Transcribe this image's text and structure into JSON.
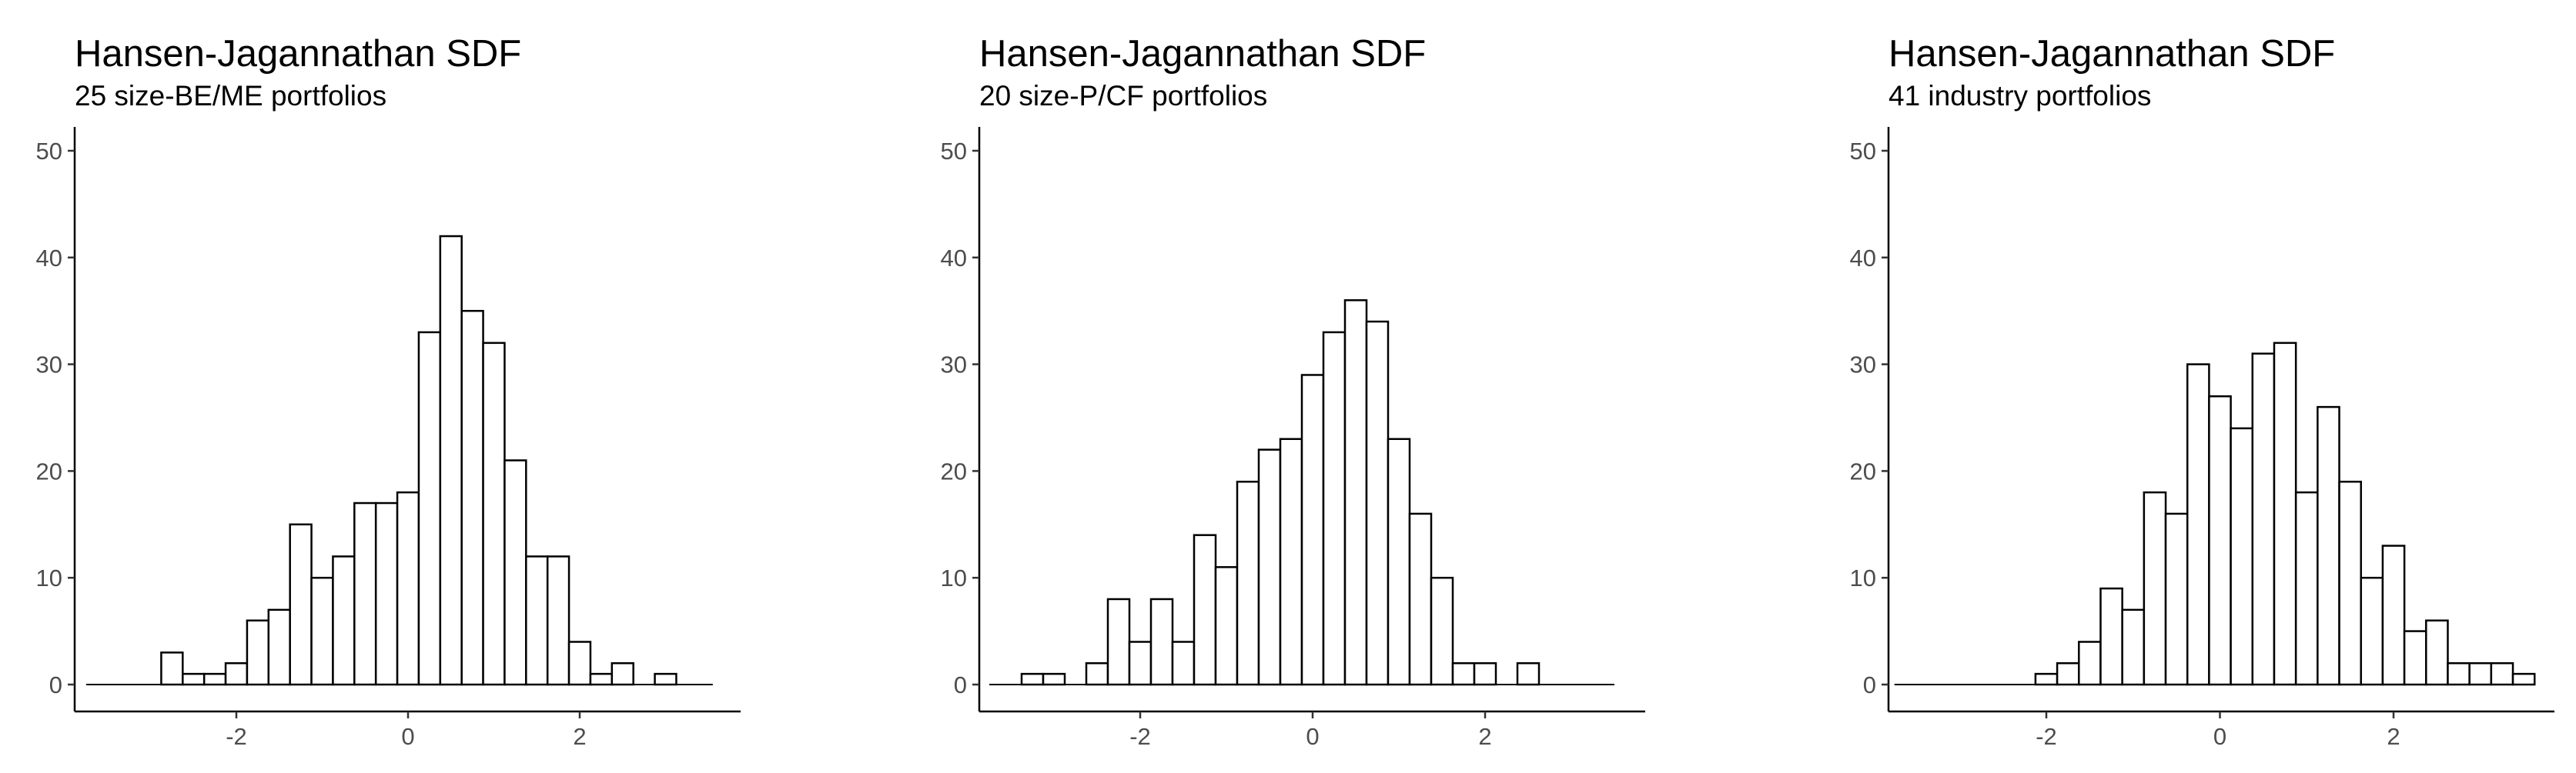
{
  "chart_data": [
    {
      "type": "bar",
      "title": "Hansen-Jagannathan SDF",
      "subtitle": "25 size-BE/ME portfolios",
      "xlabel": "",
      "ylabel": "",
      "bin_width": 0.25,
      "bin_start": -3.125,
      "counts": [
        0,
        3,
        1,
        1,
        2,
        6,
        7,
        15,
        10,
        12,
        17,
        17,
        18,
        33,
        42,
        35,
        32,
        21,
        12,
        12,
        4,
        1,
        2,
        0,
        1,
        0,
        0
      ],
      "xlim": [
        -3.25,
        3.6
      ],
      "ylim": [
        0,
        50
      ],
      "xticks": [
        -2,
        0,
        2
      ],
      "yticks": [
        0,
        10,
        20,
        30,
        40,
        50
      ],
      "grid": false
    },
    {
      "type": "bar",
      "title": "Hansen-Jagannathan SDF",
      "subtitle": "20 size-P/CF portfolios",
      "xlabel": "",
      "ylabel": "",
      "bin_width": 0.25,
      "bin_start": -3.375,
      "counts": [
        1,
        1,
        0,
        2,
        8,
        4,
        8,
        4,
        14,
        11,
        19,
        22,
        23,
        29,
        33,
        36,
        34,
        23,
        16,
        10,
        2,
        2,
        0,
        2,
        0,
        0,
        0
      ],
      "xlim": [
        -3.5,
        3.6
      ],
      "ylim": [
        0,
        50
      ],
      "xticks": [
        -2,
        0,
        2
      ],
      "yticks": [
        0,
        10,
        20,
        30,
        40,
        50
      ],
      "grid": false
    },
    {
      "type": "bar",
      "title": "Hansen-Jagannathan SDF",
      "subtitle": "41 industry portfolios",
      "xlabel": "",
      "ylabel": "",
      "bin_width": 0.25,
      "bin_start": -3.375,
      "counts": [
        0,
        0,
        0,
        0,
        0,
        1,
        2,
        4,
        9,
        7,
        18,
        16,
        30,
        27,
        24,
        31,
        32,
        18,
        26,
        19,
        10,
        13,
        5,
        6,
        2,
        2,
        2,
        1,
        0
      ],
      "xlim": [
        -3.5,
        3.6
      ],
      "ylim": [
        0,
        50
      ],
      "xticks": [
        -2,
        0,
        2
      ],
      "yticks": [
        0,
        10,
        20,
        30,
        40,
        50
      ],
      "grid": false
    }
  ]
}
